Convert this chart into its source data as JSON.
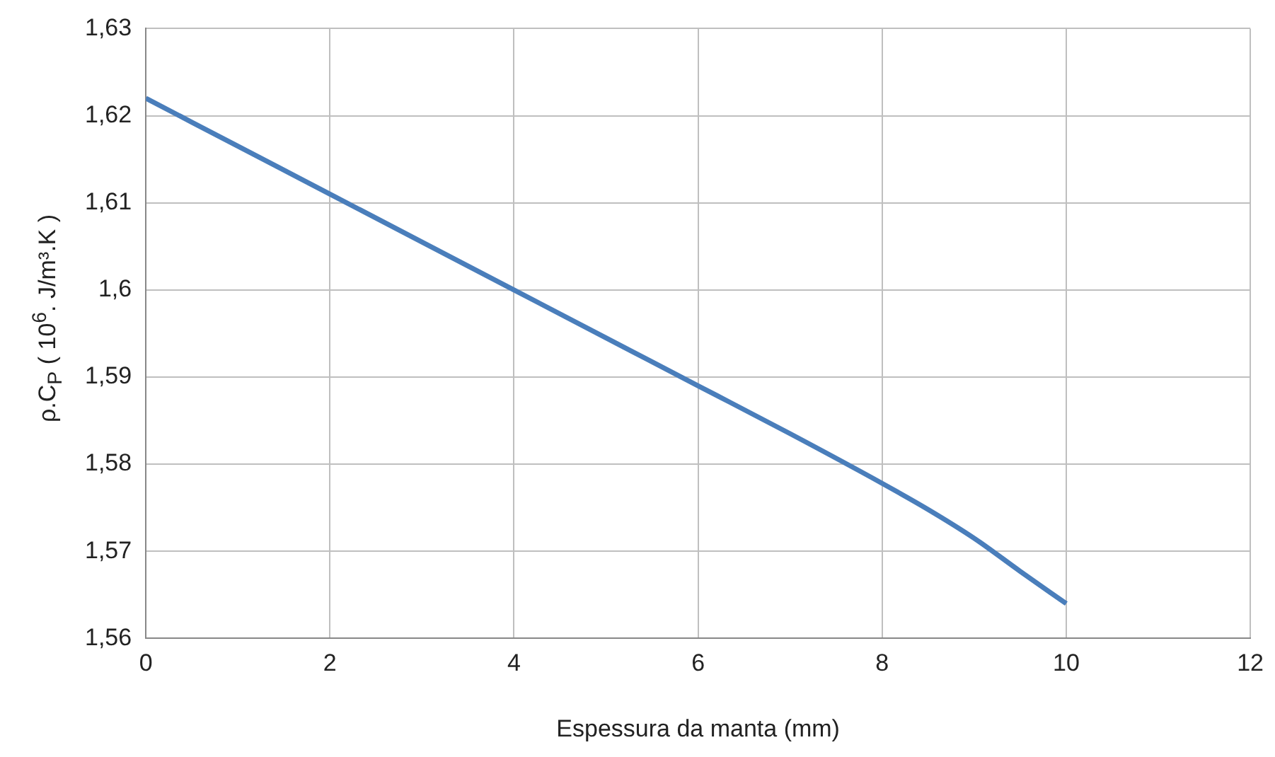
{
  "chart_data": {
    "type": "line",
    "xlabel": "Espessura da manta (mm)",
    "ylabel": "ρ.C$_{P}$ ( 10$^{6}$. J/m³.K )",
    "x": [
      0,
      1,
      2,
      3,
      4,
      5,
      6,
      7,
      8,
      8.5,
      9,
      9.5,
      10
    ],
    "series": [
      {
        "color": "#4a7ebb",
        "values": [
          1.622,
          1.6165,
          1.611,
          1.6055,
          1.6,
          1.5945,
          1.589,
          1.5835,
          1.5778,
          1.5748,
          1.5715,
          1.5677,
          1.564
        ]
      }
    ],
    "xlim": [
      0,
      12
    ],
    "xticks": [
      0,
      2,
      4,
      6,
      8,
      10,
      12
    ],
    "ylim": [
      1.56,
      1.63
    ],
    "yticks": [
      {
        "value": 1.56,
        "label": "1,56"
      },
      {
        "value": 1.57,
        "label": "1,57"
      },
      {
        "value": 1.58,
        "label": "1,58"
      },
      {
        "value": 1.59,
        "label": "1,59"
      },
      {
        "value": 1.6,
        "label": "1,6"
      },
      {
        "value": 1.61,
        "label": "1,61"
      },
      {
        "value": 1.62,
        "label": "1,62"
      },
      {
        "value": 1.63,
        "label": "1,63"
      }
    ],
    "grid": true,
    "marker": "none"
  }
}
